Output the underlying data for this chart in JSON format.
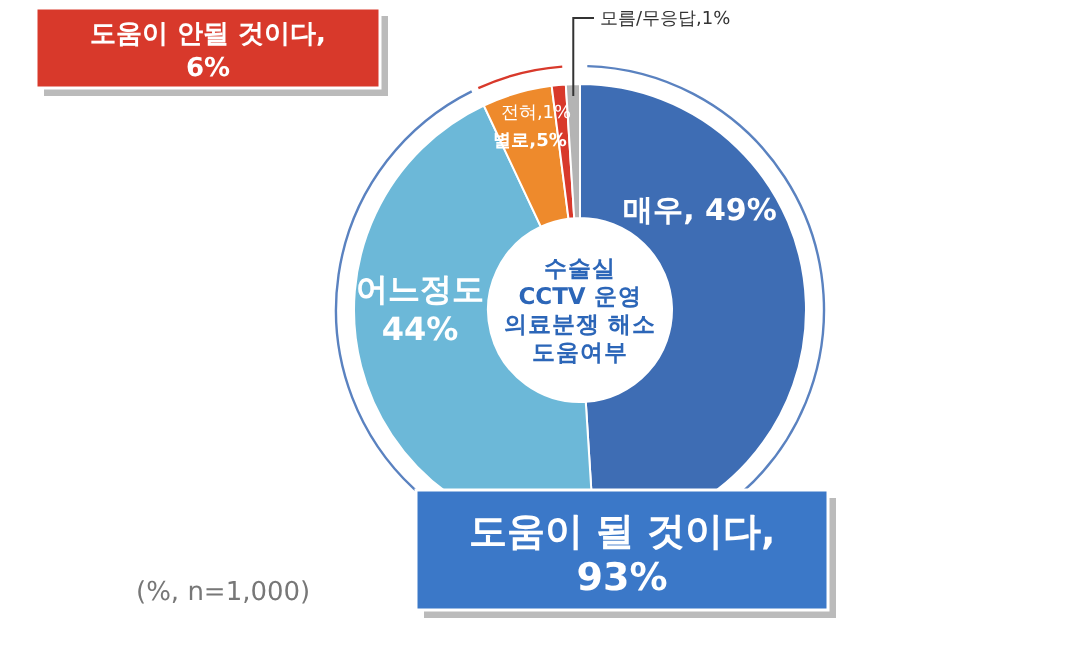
{
  "chart_data": {
    "type": "donut",
    "title": "수술실 CCTV 운영 의료분쟁 해소 도움여부",
    "categories": [
      "매우",
      "어느정도",
      "별로",
      "전혀",
      "모름/무응답"
    ],
    "values": [
      49,
      44,
      5,
      1,
      1
    ],
    "value_labels": [
      "49%",
      "44%",
      "5%",
      "1%",
      "1%"
    ],
    "colors": [
      "#3e6db4",
      "#6cb8d8",
      "#ee8a2c",
      "#d8392b",
      "#b4b4b4"
    ],
    "annotations": [
      "도움이 될 것이다, 93%",
      "도움이 안될 것이다, 6%",
      "(%, n=1,000)"
    ]
  }
}
